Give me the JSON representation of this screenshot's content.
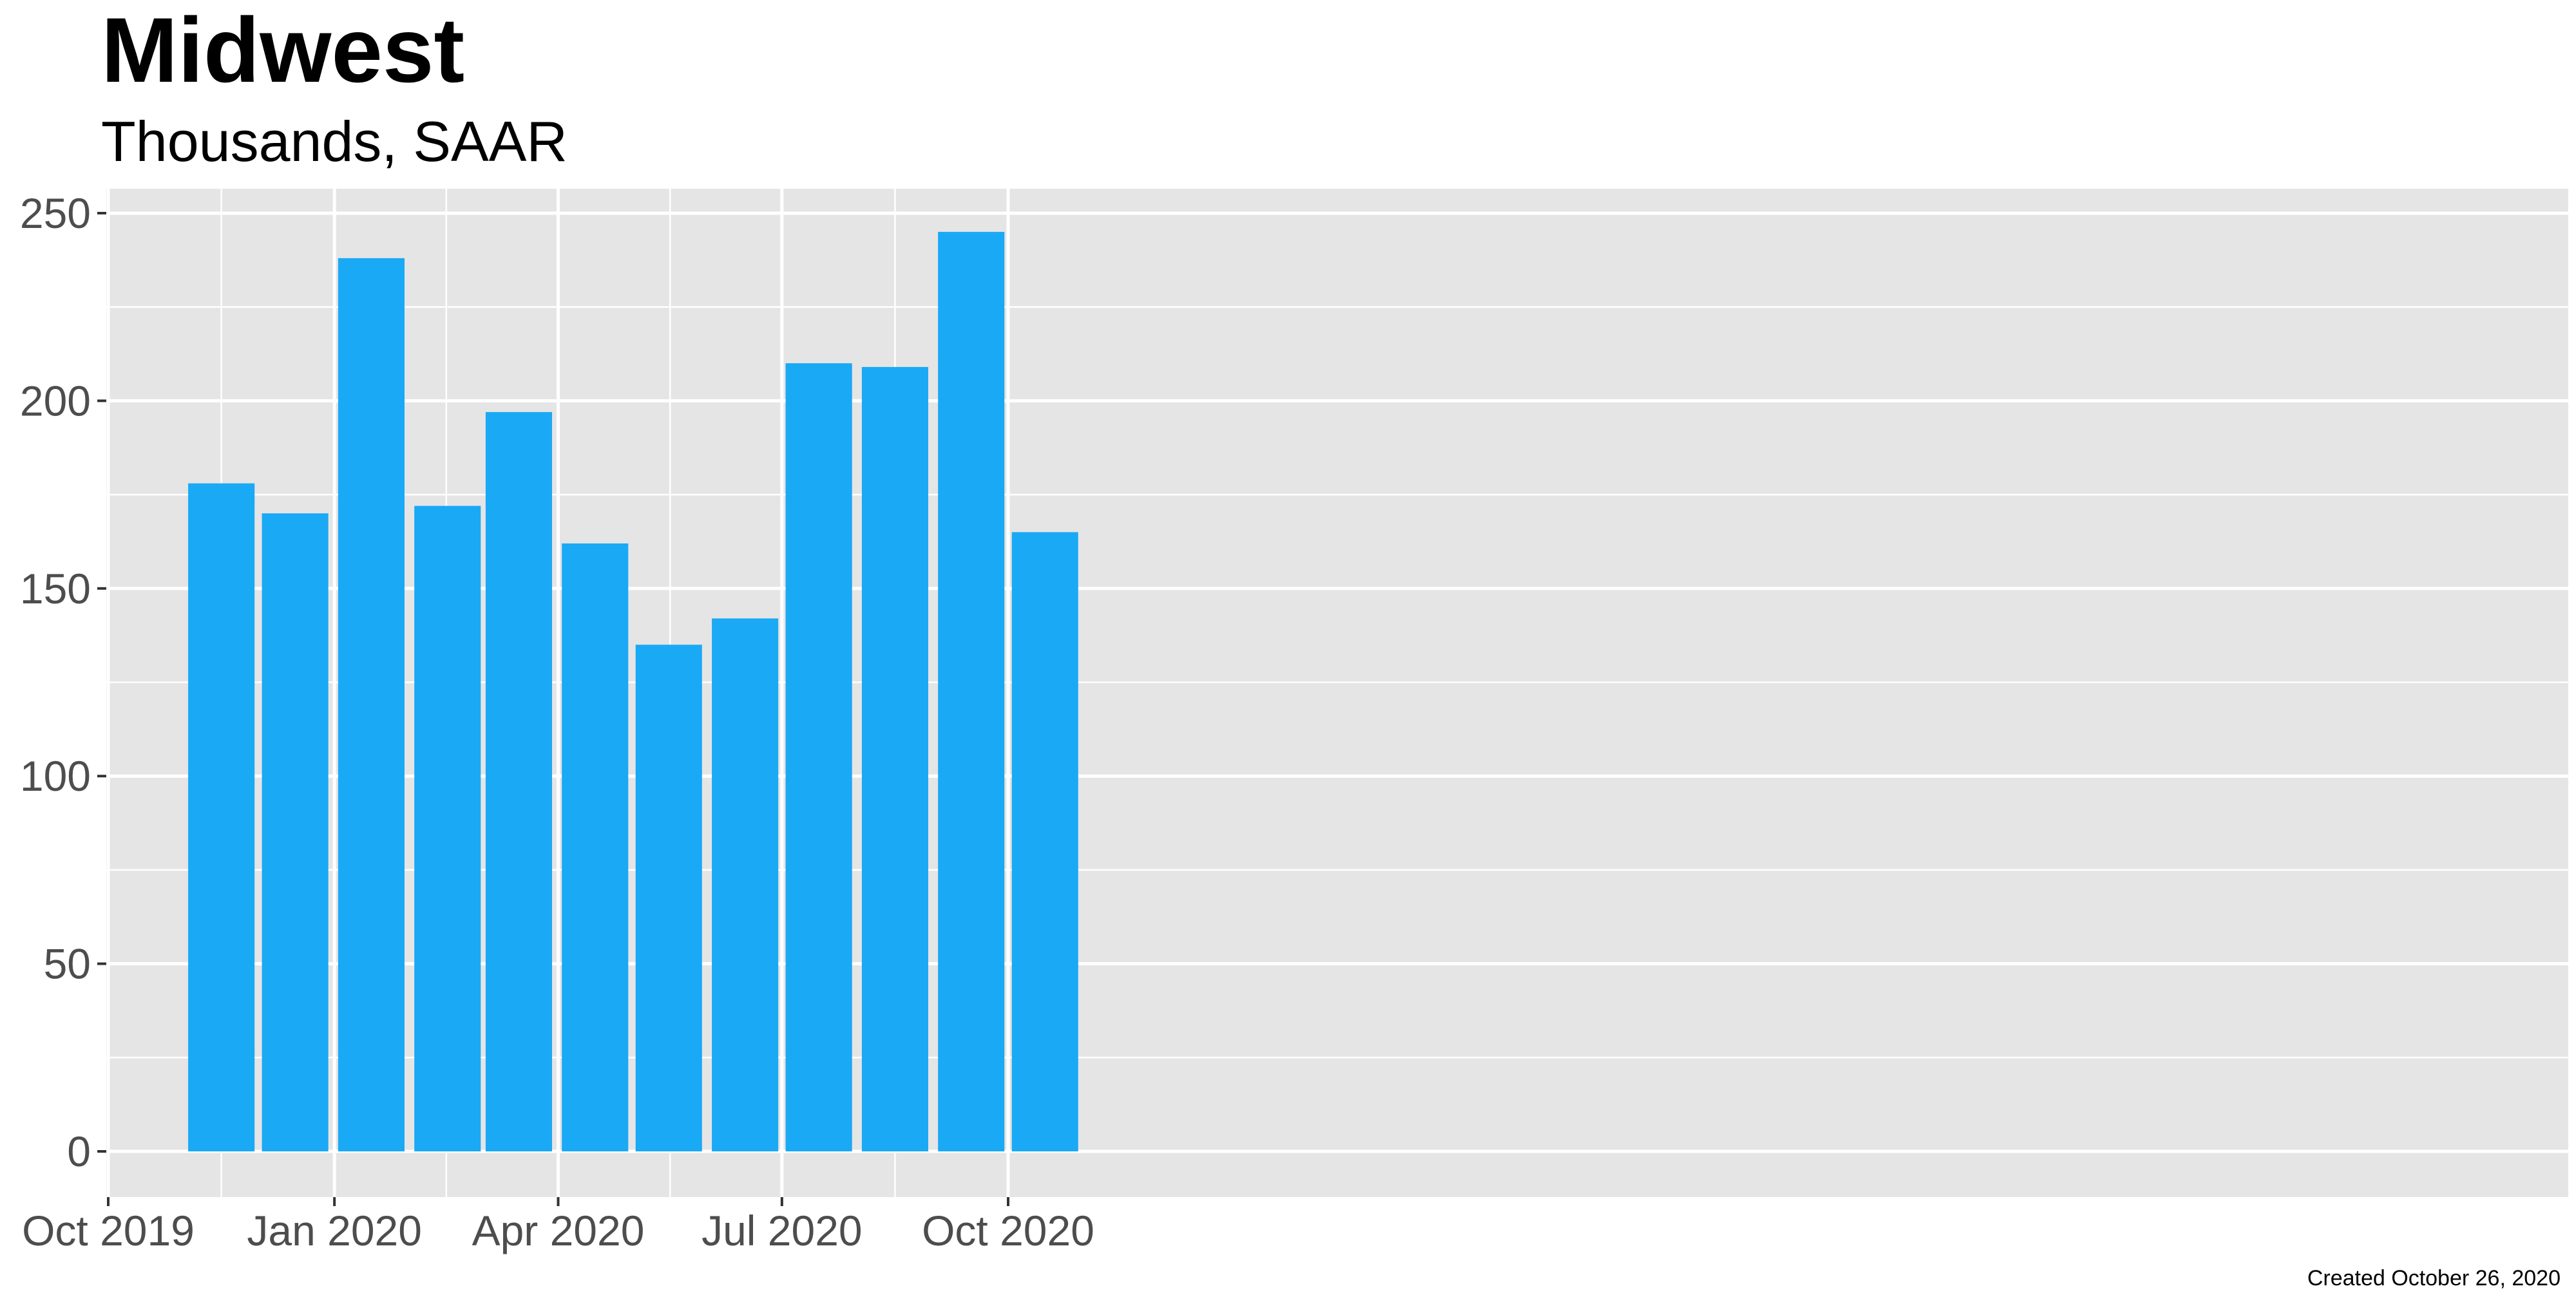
{
  "chart_data": {
    "type": "bar",
    "title": "Midwest",
    "subtitle": "Thousands, SAAR",
    "caption": "Created October 26, 2020",
    "xlabel": "",
    "ylabel": "",
    "x": [
      "2019-11-01",
      "2019-12-01",
      "2020-01-01",
      "2020-02-01",
      "2020-03-01",
      "2020-04-01",
      "2020-05-01",
      "2020-06-01",
      "2020-07-01",
      "2020-08-01",
      "2020-09-01",
      "2020-10-01"
    ],
    "values": [
      178,
      170,
      238,
      172,
      197,
      162,
      135,
      142,
      210,
      209,
      245,
      165
    ],
    "ylim": [
      0,
      250
    ],
    "xlim": [
      "2019-10-01",
      "2020-10-01"
    ],
    "yticks": [
      0,
      50,
      100,
      150,
      200,
      250
    ],
    "yticklabels": [
      "0",
      "50",
      "100",
      "150",
      "200",
      "250"
    ],
    "xticks": [
      "2019-10-01",
      "2020-01-01",
      "2020-04-01",
      "2020-07-01",
      "2020-10-01"
    ],
    "xticklabels": [
      "Oct 2019",
      "Jan 2020",
      "Apr 2020",
      "Jul 2020",
      "Oct 2020"
    ],
    "grid": true,
    "legend": "none",
    "colors": {
      "bar": "#1AA9F5",
      "panel_background": "#E5E5E5",
      "gridline": "#FFFFFF",
      "tick_label": "#4D4D4D",
      "axis_tick": "#333333",
      "text": "#000000"
    }
  }
}
